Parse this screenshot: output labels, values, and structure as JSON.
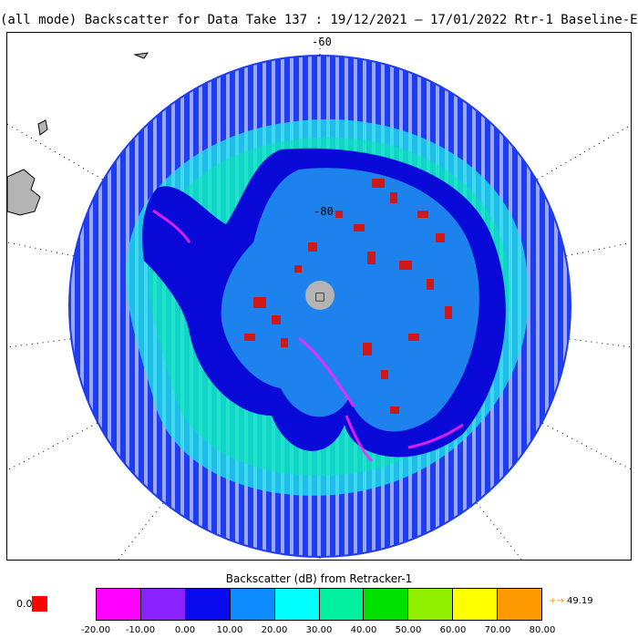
{
  "title": "(all mode) Backscatter for Data Take 137 : 19/12/2021 – 17/01/2022 Rtr-1 Baseline-E",
  "map": {
    "lat_labels": [
      "-60",
      "-80"
    ],
    "pole_marker": "□",
    "colors": {
      "ocean_base": "#1e3cf0",
      "sea_ice": "#20e8e8",
      "ice_sheet": "#0a0ad8",
      "interior": "#1f8ff0",
      "high_values": "#d01818",
      "edge_magenta": "#ff22ff",
      "land_gray": "#b4b4b4"
    }
  },
  "colorbar": {
    "title": "Backscatter (dB) from Retracker-1",
    "colors": [
      "#ff00ff",
      "#8a22ff",
      "#0a0aee",
      "#0e8cff",
      "#00ffff",
      "#00f0a0",
      "#00e000",
      "#90f000",
      "#ffff00",
      "#ff9900"
    ],
    "ticks": [
      "-20.00",
      "-10.00",
      "0.00",
      "10.00",
      "20.00",
      "30.00",
      "40.00",
      "50.00",
      "60.00",
      "70.00",
      "80.00"
    ],
    "below_label": "0.0",
    "below_color": "#ff0000",
    "above_value": "49.19",
    "above_arrow": "+→"
  }
}
